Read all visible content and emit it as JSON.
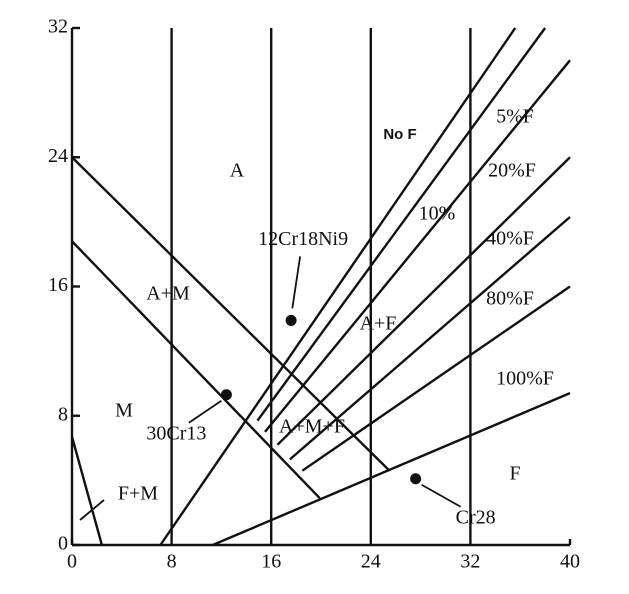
{
  "chart_data": {
    "type": "diagram",
    "xlim": [
      0,
      40
    ],
    "ylim": [
      0,
      32
    ],
    "xticks": [
      0,
      8,
      16,
      24,
      32,
      40
    ],
    "yticks": [
      0,
      8,
      16,
      24,
      32
    ],
    "grid": "x",
    "lines": [
      {
        "x": [
          0,
          25.5
        ],
        "y": [
          24,
          4.6
        ]
      },
      {
        "x": [
          0,
          19.9
        ],
        "y": [
          18.8,
          2.9
        ]
      },
      {
        "x": [
          0,
          2.4
        ],
        "y": [
          6.7,
          0
        ]
      },
      {
        "x": [
          7.1,
          35.6
        ],
        "y": [
          0,
          32
        ]
      },
      {
        "x": [
          14.9,
          38
        ],
        "y": [
          7.7,
          32
        ]
      },
      {
        "x": [
          15.5,
          40
        ],
        "y": [
          7.0,
          30
        ]
      },
      {
        "x": [
          16.5,
          40
        ],
        "y": [
          6.2,
          24
        ]
      },
      {
        "x": [
          17.5,
          40
        ],
        "y": [
          5.3,
          20.3
        ]
      },
      {
        "x": [
          18.5,
          40
        ],
        "y": [
          4.6,
          16
        ]
      },
      {
        "x": [
          11.3,
          40
        ],
        "y": [
          0,
          9.4
        ]
      }
    ],
    "points": [
      {
        "label": "12Cr18Ni9",
        "x": 17.6,
        "y": 13.9
      },
      {
        "label": "30Cr13",
        "x": 12.4,
        "y": 9.3
      },
      {
        "label": "Cr28",
        "x": 27.6,
        "y": 4.1
      }
    ],
    "annotations": [
      "No F",
      "5%F",
      "20%F",
      "10%",
      "40%F",
      "80%F",
      "100%F",
      "A",
      "A+M",
      "A+F",
      "A+M+F",
      "M",
      "F",
      "F+M"
    ]
  }
}
